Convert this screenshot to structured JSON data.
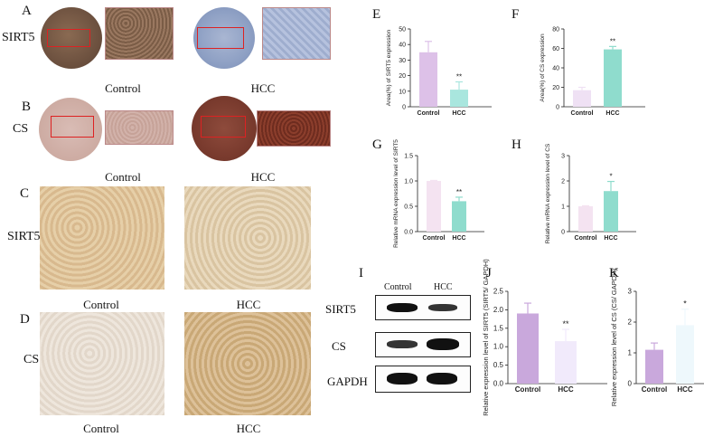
{
  "panels": {
    "A": "A",
    "B": "B",
    "C": "C",
    "D": "D",
    "E": "E",
    "F": "F",
    "G": "G",
    "H": "H",
    "I": "I",
    "J": "J",
    "K": "K"
  },
  "row_labels": {
    "a": "SIRT5",
    "b": "CS",
    "c": "SIRT5",
    "d": "CS"
  },
  "captions": {
    "a_left": "Control",
    "a_right": "HCC",
    "b_left": "Control",
    "b_right": "HCC",
    "c_left": "Control",
    "c_right": "HCC",
    "d_left": "Control",
    "d_right": "HCC"
  },
  "western_blot": {
    "lanes": [
      "Control",
      "HCC"
    ],
    "rows": [
      "SIRT5",
      "CS",
      "GAPDH"
    ]
  },
  "colors": {
    "purple": "#c9a8dc",
    "mint": "#8fdccd",
    "lavender_light": "#efe1f4",
    "pink_light": "#f4e3f1",
    "mint_light": "#e6f7f3"
  },
  "chart_data": [
    {
      "id": "E",
      "type": "bar",
      "categories": [
        "Control",
        "HCC"
      ],
      "values": [
        35,
        11
      ],
      "errors": [
        7,
        5
      ],
      "colors": [
        "#ddc1e8",
        "#a9e6de"
      ],
      "significance": [
        "",
        "**"
      ],
      "ylabel": "Area(%) of SIRT5 expression",
      "ylim": [
        0,
        50
      ],
      "yticks": [
        "0",
        "10",
        "20",
        "30",
        "40",
        "50"
      ]
    },
    {
      "id": "F",
      "type": "bar",
      "categories": [
        "Control",
        "HCC"
      ],
      "values": [
        17,
        59
      ],
      "errors": [
        3,
        3
      ],
      "colors": [
        "#efe1f4",
        "#8fdccd"
      ],
      "significance": [
        "",
        "**"
      ],
      "ylabel": "Area(%) of CS expression",
      "ylim": [
        0,
        80
      ],
      "yticks": [
        "0",
        "20",
        "40",
        "60",
        "80"
      ]
    },
    {
      "id": "G",
      "type": "bar",
      "categories": [
        "Control",
        "HCC"
      ],
      "values": [
        1.0,
        0.6
      ],
      "errors": [
        0.01,
        0.08
      ],
      "colors": [
        "#f4e3f1",
        "#8fdccd"
      ],
      "significance": [
        "",
        "**"
      ],
      "ylabel": "Relative mRNA expression level of SIRT5",
      "ylim": [
        0,
        1.5
      ],
      "yticks": [
        "0.0",
        "0.5",
        "1.0",
        "1.5"
      ]
    },
    {
      "id": "H",
      "type": "bar",
      "categories": [
        "Control",
        "HCC"
      ],
      "values": [
        1.0,
        1.6
      ],
      "errors": [
        0.02,
        0.38
      ],
      "colors": [
        "#f4e3f1",
        "#8fdccd"
      ],
      "significance": [
        "",
        "*"
      ],
      "ylabel": "Relative mRNA expression level of CS",
      "ylim": [
        0,
        2.5
      ],
      "yticks": [
        "0",
        "1",
        "2",
        "3"
      ]
    },
    {
      "id": "J",
      "type": "bar",
      "categories": [
        "Control",
        "HCC"
      ],
      "values": [
        1.9,
        1.15
      ],
      "errors": [
        0.28,
        0.32
      ],
      "colors": [
        "#c9a8dc",
        "#f1eafb"
      ],
      "significance": [
        "",
        "**"
      ],
      "ylabel": "Relative expression level of SIRT5 (SIRT5/ GAPDH)",
      "ylim": [
        0,
        2.5
      ],
      "yticks": [
        "0.0",
        "0.5",
        "1.0",
        "1.5",
        "2.0",
        "2.5"
      ]
    },
    {
      "id": "K",
      "type": "bar",
      "categories": [
        "Control",
        "HCC"
      ],
      "values": [
        1.1,
        1.9
      ],
      "errors": [
        0.22,
        0.52
      ],
      "colors": [
        "#c9a8dc",
        "#eef8fc"
      ],
      "significance": [
        "",
        "*"
      ],
      "ylabel": "Relative expression level of CS (CS/ GAPDH)",
      "ylim": [
        0,
        3
      ],
      "yticks": [
        "0",
        "1",
        "2",
        "3"
      ]
    }
  ]
}
